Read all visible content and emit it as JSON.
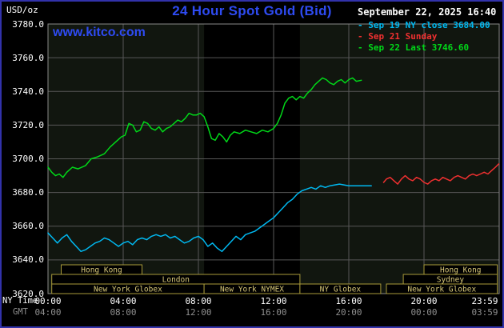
{
  "header": {
    "unit": "USD/oz",
    "title": "24 Hour Spot Gold (Bid)",
    "datetime": "September 22, 2025 16:40",
    "site": "www.kitco.com",
    "legend": [
      {
        "label": "- Sep 19 NY close 3684.00",
        "color": "#00b8f0"
      },
      {
        "label": "- Sep 21 Sunday",
        "color": "#f03030"
      },
      {
        "label": "- Sep 22 Last 3746.60",
        "color": "#00d818"
      }
    ]
  },
  "axes": {
    "ny_time_label": "NY Time",
    "gmt_label": "GMT",
    "y_ticks": [
      {
        "value": 3780,
        "label": "3780.0"
      },
      {
        "value": 3760,
        "label": "3760.0"
      },
      {
        "value": 3740,
        "label": "3740.0"
      },
      {
        "value": 3720,
        "label": "3720.0"
      },
      {
        "value": 3700,
        "label": "3700.0"
      },
      {
        "value": 3680,
        "label": "3680.0"
      },
      {
        "value": 3660,
        "label": "3660.0"
      },
      {
        "value": 3640,
        "label": "3640.0"
      },
      {
        "value": 3620,
        "label": "3620.0"
      }
    ],
    "x_ticks": [
      {
        "hour": 0,
        "ny": "00:00",
        "gmt": "04:00"
      },
      {
        "hour": 4,
        "ny": "04:00",
        "gmt": "08:00"
      },
      {
        "hour": 8,
        "ny": "08:00",
        "gmt": "12:00"
      },
      {
        "hour": 12,
        "ny": "12:00",
        "gmt": "16:00"
      },
      {
        "hour": 16,
        "ny": "16:00",
        "gmt": "20:00"
      },
      {
        "hour": 20,
        "ny": "20:00",
        "gmt": "00:00"
      },
      {
        "hour": 23.983,
        "ny": "23:59",
        "gmt": "03:59"
      }
    ]
  },
  "sessions": {
    "rows": [
      [
        {
          "label": "Hong Kong",
          "start": 0.7,
          "end": 5.0
        },
        {
          "label": "Hong Kong",
          "start": 20.0,
          "end": 23.9
        }
      ],
      [
        {
          "label": "London",
          "start": 0.2,
          "end": 13.4
        },
        {
          "label": "Sydney",
          "start": 18.9,
          "end": 23.9
        }
      ],
      [
        {
          "label": "New York Globex",
          "start": 0.2,
          "end": 8.3
        },
        {
          "label": "New York NYMEX",
          "start": 8.3,
          "end": 13.4
        },
        {
          "label": "NY Globex",
          "start": 13.4,
          "end": 17.7
        },
        {
          "label": "New York Globex",
          "start": 18.0,
          "end": 23.9
        }
      ]
    ]
  },
  "colors": {
    "title_blue": "#2e4bf2",
    "grid": "#575757",
    "frame": "#8a8a8a",
    "plot_background": "#11160f",
    "band_background": "#000000",
    "session_border": "#a89a3a",
    "session_text": "#d8c878",
    "axis_text": "#ffffff",
    "gmt_text": "#8f8f8f",
    "border_blue": "#3232aa"
  },
  "chart_data": {
    "type": "line",
    "title": "24 Hour Spot Gold (Bid)",
    "xlabel": "NY Time (hours 00:00-23:59)",
    "ylabel": "USD/oz",
    "xlim": [
      0,
      24
    ],
    "ylim": [
      3620,
      3780
    ],
    "grid": true,
    "legend_position": "top-right",
    "prev_close": 3684.0,
    "last_price": 3746.6,
    "nymex_band_hours": [
      8.3,
      13.4
    ],
    "series": [
      {
        "key": "sep19-line",
        "name": "Sep 19 NY close 3684.00",
        "color": "#00b8f0",
        "x": [
          0,
          0.25,
          0.5,
          0.75,
          1.0,
          1.25,
          1.5,
          1.75,
          2.0,
          2.25,
          2.5,
          2.75,
          3.0,
          3.25,
          3.5,
          3.75,
          4.0,
          4.25,
          4.5,
          4.75,
          5.0,
          5.25,
          5.5,
          5.75,
          6.0,
          6.25,
          6.5,
          6.75,
          7.0,
          7.25,
          7.5,
          7.75,
          8.0,
          8.25,
          8.5,
          8.75,
          9.0,
          9.25,
          9.5,
          9.75,
          10.0,
          10.25,
          10.5,
          10.75,
          11.0,
          11.25,
          11.5,
          11.75,
          12.0,
          12.25,
          12.5,
          12.75,
          13.0,
          13.25,
          13.5,
          13.75,
          14.0,
          14.25,
          14.5,
          14.75,
          15.0,
          15.5,
          16.0,
          16.5,
          17.0,
          17.2
        ],
        "y": [
          3656,
          3653,
          3650,
          3653,
          3655,
          3651,
          3648,
          3645,
          3646,
          3648,
          3650,
          3651,
          3653,
          3652,
          3650,
          3648,
          3650,
          3651,
          3649,
          3652,
          3653,
          3652,
          3654,
          3655,
          3654,
          3655,
          3653,
          3654,
          3652,
          3650,
          3651,
          3653,
          3654,
          3652,
          3648,
          3650,
          3647,
          3645,
          3648,
          3651,
          3654,
          3652,
          3655,
          3656,
          3657,
          3659,
          3661,
          3663,
          3665,
          3668,
          3671,
          3674,
          3676,
          3679,
          3681,
          3682,
          3683,
          3682,
          3684,
          3683,
          3684,
          3685,
          3684,
          3684,
          3684,
          3684
        ]
      },
      {
        "key": "sep21-line",
        "name": "Sep 21 Sunday",
        "color": "#f03030",
        "x": [
          17.85,
          18.0,
          18.2,
          18.4,
          18.6,
          18.8,
          19.0,
          19.2,
          19.4,
          19.6,
          19.8,
          20.0,
          20.2,
          20.4,
          20.6,
          20.8,
          21.0,
          21.2,
          21.4,
          21.6,
          21.8,
          22.0,
          22.2,
          22.4,
          22.6,
          22.8,
          23.0,
          23.2,
          23.4,
          23.6,
          23.8,
          23.98
        ],
        "y": [
          3686,
          3688,
          3689,
          3687,
          3685,
          3688,
          3690,
          3688,
          3687,
          3689,
          3688,
          3686,
          3685,
          3687,
          3688,
          3687,
          3689,
          3688,
          3687,
          3689,
          3690,
          3689,
          3688,
          3690,
          3691,
          3690,
          3691,
          3692,
          3691,
          3693,
          3695,
          3697
        ]
      },
      {
        "key": "sep22-line",
        "name": "Sep 22 Last 3746.60",
        "color": "#00d818",
        "x": [
          0,
          0.2,
          0.4,
          0.6,
          0.8,
          1.0,
          1.3,
          1.6,
          2.0,
          2.3,
          2.6,
          3.0,
          3.3,
          3.6,
          3.9,
          4.1,
          4.3,
          4.5,
          4.7,
          4.9,
          5.1,
          5.3,
          5.5,
          5.7,
          5.9,
          6.1,
          6.3,
          6.5,
          6.7,
          6.9,
          7.1,
          7.3,
          7.5,
          7.7,
          7.9,
          8.1,
          8.3,
          8.5,
          8.7,
          8.9,
          9.1,
          9.3,
          9.5,
          9.7,
          9.9,
          10.2,
          10.5,
          10.8,
          11.1,
          11.4,
          11.7,
          12.0,
          12.2,
          12.4,
          12.6,
          12.8,
          13.0,
          13.2,
          13.4,
          13.6,
          13.8,
          14.0,
          14.2,
          14.4,
          14.6,
          14.8,
          15.0,
          15.2,
          15.4,
          15.6,
          15.8,
          16.0,
          16.2,
          16.4,
          16.67
        ],
        "y": [
          3695,
          3692,
          3690,
          3691,
          3689,
          3692,
          3695,
          3694,
          3696,
          3700,
          3701,
          3703,
          3707,
          3710,
          3713,
          3714,
          3721,
          3720,
          3716,
          3717,
          3722,
          3721,
          3718,
          3717,
          3719,
          3716,
          3718,
          3719,
          3721,
          3723,
          3722,
          3724,
          3727,
          3726,
          3726,
          3727,
          3725,
          3719,
          3712,
          3711,
          3715,
          3713,
          3710,
          3714,
          3716,
          3715,
          3717,
          3716,
          3715,
          3717,
          3716,
          3718,
          3721,
          3726,
          3733,
          3736,
          3737,
          3735,
          3737,
          3736,
          3739,
          3741,
          3744,
          3746,
          3748,
          3747,
          3745,
          3744,
          3746,
          3747,
          3745,
          3747,
          3748,
          3746,
          3746.6
        ]
      }
    ]
  }
}
